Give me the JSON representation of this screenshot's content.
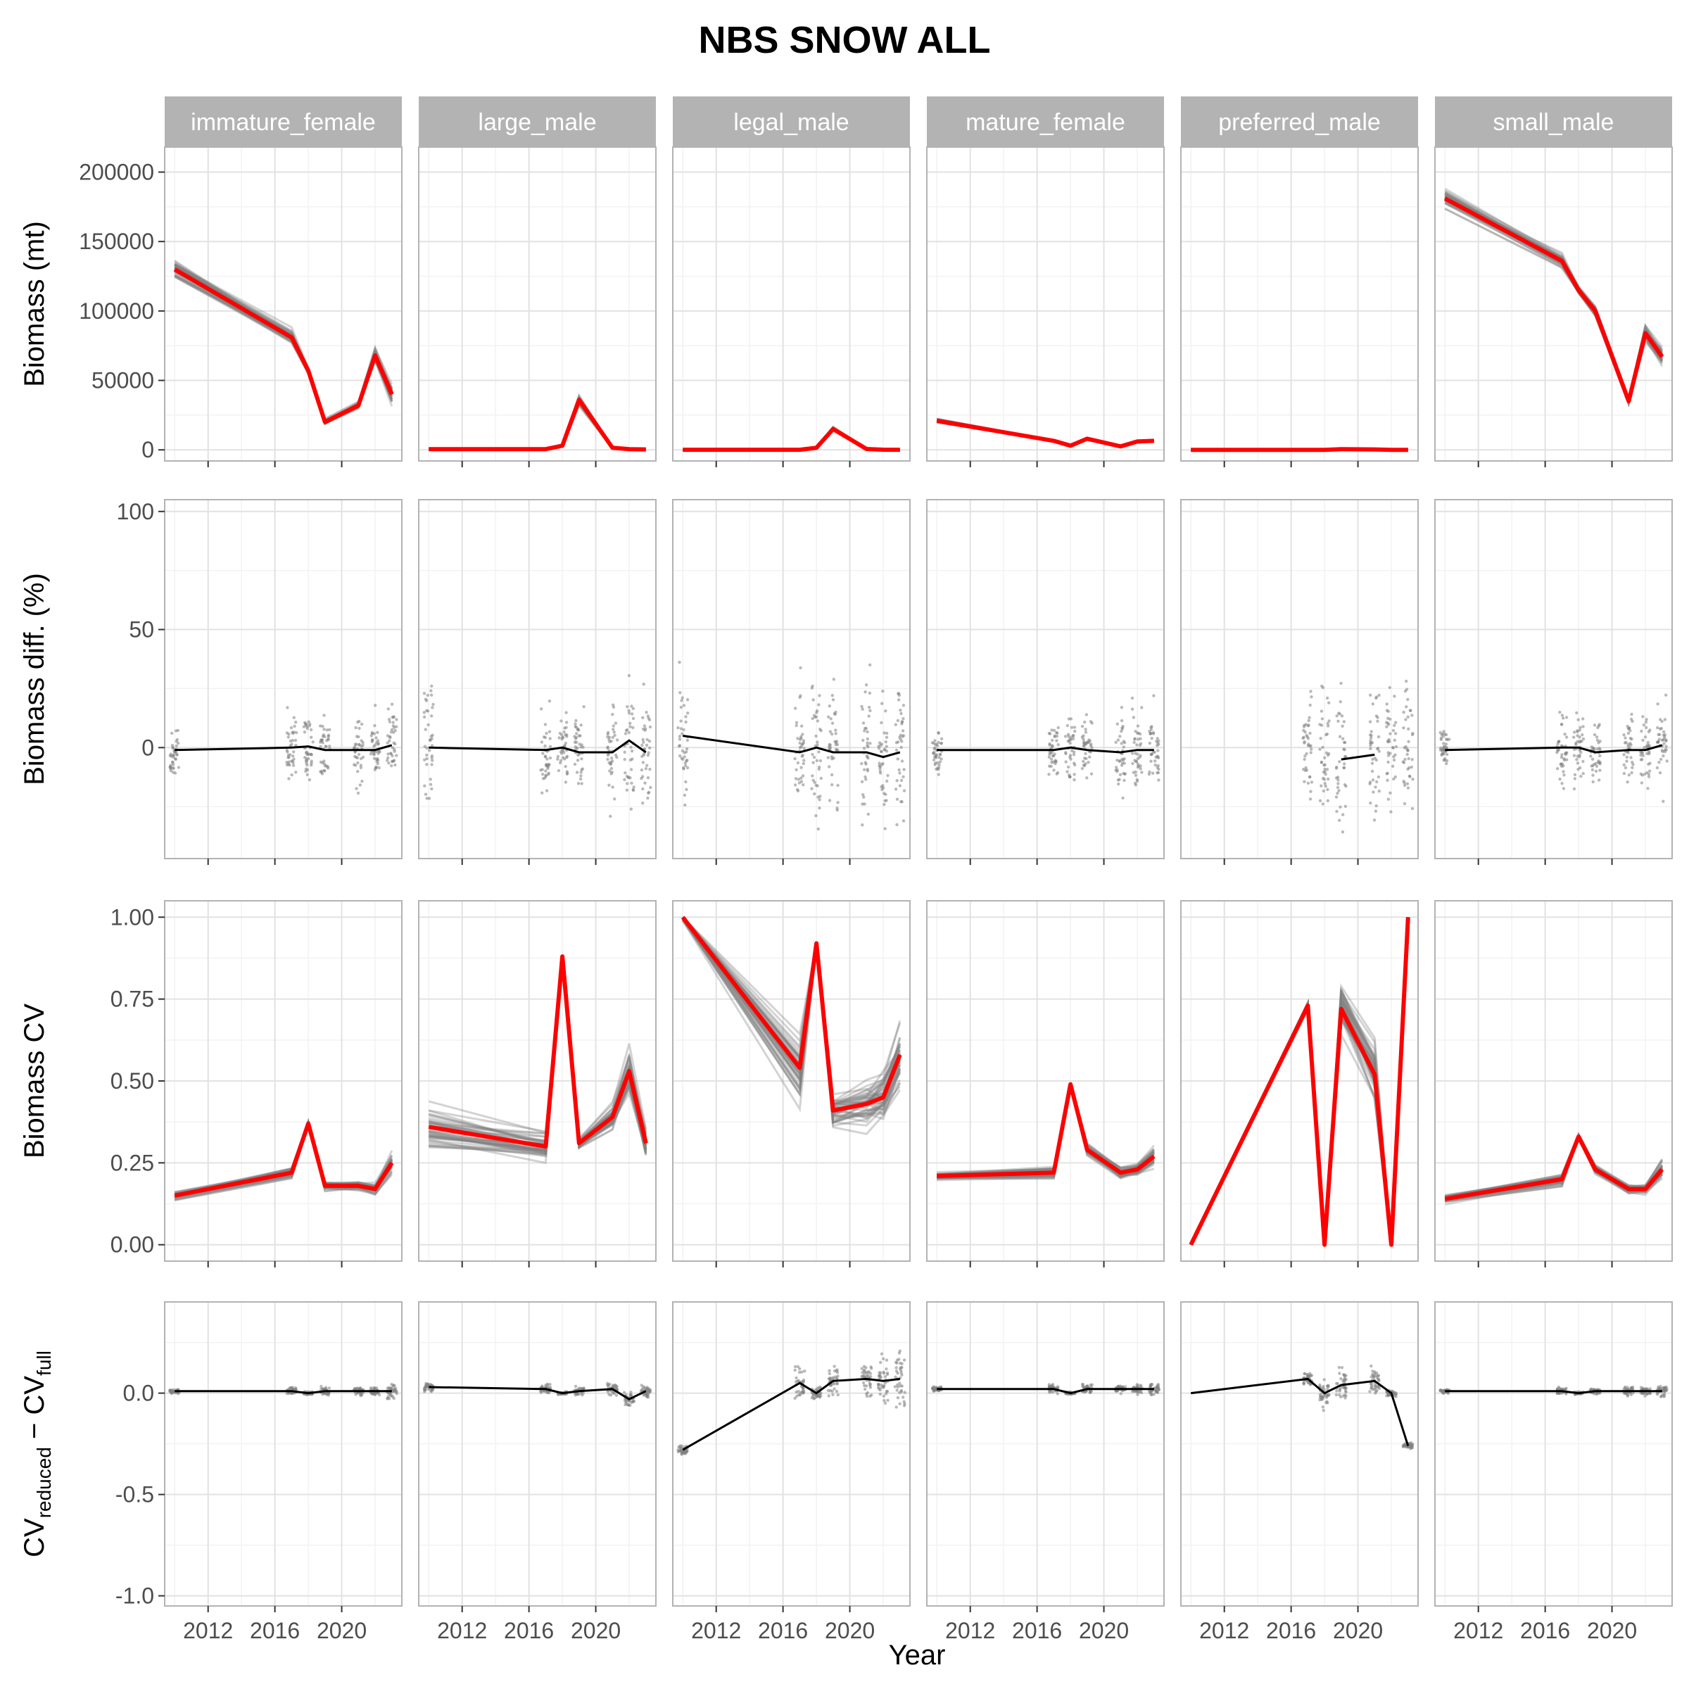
{
  "title": "NBS SNOW ALL",
  "xlabel": "Year",
  "panels": [
    "immature_female",
    "large_male",
    "legal_male",
    "mature_female",
    "preferred_male",
    "small_male"
  ],
  "colors": {
    "strip": "#b3b3b3",
    "grid_major": "#e2e2e2",
    "grid_minor": "#f2f2f2",
    "panel_border": "#b3b3b3",
    "replicate_line": "#808080",
    "full_line": "#ff0000",
    "summary_line": "#000000",
    "points": "#7f7f7f"
  },
  "x_axis": {
    "ticks": [
      2012,
      2016,
      2020
    ],
    "tick_labels": [
      "2012",
      "2016",
      "2020"
    ],
    "range": [
      2009.4,
      2023.6
    ]
  },
  "rows": [
    {
      "id": "biomass",
      "ylabel": "Biomass (mt)",
      "ylim": [
        -8000,
        218000
      ],
      "yticks": [
        0,
        50000,
        100000,
        150000,
        200000
      ],
      "ytick_labels": [
        "0",
        "50000",
        "100000",
        "150000",
        "200000"
      ]
    },
    {
      "id": "biomass_diff",
      "ylabel": "Biomass diff. (%)",
      "ylim": [
        -47,
        105
      ],
      "yticks": [
        0,
        50,
        100
      ],
      "ytick_labels": [
        "0",
        "50",
        "100"
      ]
    },
    {
      "id": "cv",
      "ylabel": "Biomass CV",
      "ylim": [
        -0.05,
        1.05
      ],
      "yticks": [
        0,
        0.25,
        0.5,
        0.75,
        1
      ],
      "ytick_labels": [
        "0.00",
        "0.25",
        "0.50",
        "0.75",
        "1.00"
      ]
    },
    {
      "id": "cv_diff",
      "ylabel_main": "CV",
      "ylabel_sub1": "reduced",
      "ylabel_mid": " − CV",
      "ylabel_sub2": "full",
      "ylim": [
        -1.05,
        0.45
      ],
      "yticks": [
        -1,
        -0.5,
        0
      ],
      "ytick_labels": [
        "-1.0",
        "-0.5",
        "0.0"
      ]
    }
  ],
  "chart_data": {
    "type": "line",
    "years": [
      2010,
      2017,
      2018,
      2019,
      2021,
      2022,
      2023
    ],
    "series": [
      {
        "panel": "immature_female",
        "biomass_full": [
          130000,
          81000,
          57000,
          20000,
          32000,
          68000,
          40000
        ],
        "biomass_rep_spread": [
          0.12,
          0.12,
          0.08,
          0.2,
          0.15,
          0.15,
          0.35
        ],
        "biomass_diff_mean": [
          -1,
          0,
          0.5,
          -1,
          -1,
          -1,
          1
        ],
        "biomass_diff_spread": [
          15,
          20,
          20,
          20,
          20,
          20,
          25
        ],
        "cv_full": [
          0.15,
          0.22,
          0.37,
          0.18,
          0.18,
          0.17,
          0.25
        ],
        "cv_rep_spread": [
          0.02,
          0.03,
          0.01,
          0.02,
          0.02,
          0.03,
          0.05
        ],
        "cv_diff_mean": [
          0.01,
          0.01,
          0,
          0.01,
          0.01,
          0.01,
          0.01
        ],
        "cv_diff_spread": [
          0.015,
          0.03,
          0.01,
          0.03,
          0.03,
          0.03,
          0.06
        ]
      },
      {
        "panel": "large_male",
        "biomass_full": [
          500,
          500,
          3000,
          36000,
          1500,
          500,
          300
        ],
        "biomass_rep_spread": [
          0.05,
          0.05,
          0.4,
          0.2,
          0.5,
          0.5,
          0.5
        ],
        "biomass_diff_mean": [
          0,
          -1,
          0,
          -2,
          -2,
          3,
          -2
        ],
        "biomass_diff_spread": [
          40,
          25,
          25,
          25,
          30,
          35,
          35
        ],
        "cv_full": [
          0.36,
          0.3,
          0.88,
          0.31,
          0.39,
          0.53,
          0.31
        ],
        "cv_rep_spread": [
          0.12,
          0.08,
          0.01,
          0.03,
          0.06,
          0.12,
          0.08
        ],
        "cv_diff_mean": [
          0.03,
          0.02,
          0,
          0.01,
          0.02,
          -0.03,
          0.01
        ],
        "cv_diff_spread": [
          0.03,
          0.03,
          0.01,
          0.03,
          0.05,
          0.05,
          0.04
        ]
      },
      {
        "panel": "legal_male",
        "biomass_full": [
          50,
          50,
          1500,
          15000,
          600,
          100,
          80
        ],
        "biomass_rep_spread": [
          0.1,
          0.1,
          0.5,
          0.2,
          0.6,
          0.6,
          0.6
        ],
        "biomass_diff_mean": [
          5,
          -2,
          0,
          -2,
          -2,
          -4,
          -2
        ],
        "biomass_diff_spread": [
          40,
          45,
          40,
          45,
          45,
          45,
          50
        ],
        "cv_full": [
          1.0,
          0.54,
          0.92,
          0.41,
          0.43,
          0.45,
          0.58
        ],
        "cv_rep_spread": [
          0.02,
          0.15,
          0.01,
          0.08,
          0.1,
          0.12,
          0.15
        ],
        "cv_diff_mean": [
          -0.28,
          0.05,
          0,
          0.06,
          0.07,
          0.06,
          0.07
        ],
        "cv_diff_spread": [
          0.04,
          0.12,
          0.05,
          0.12,
          0.15,
          0.15,
          0.18
        ]
      },
      {
        "panel": "mature_female",
        "biomass_full": [
          21000,
          6500,
          3000,
          8000,
          2500,
          6000,
          6500
        ],
        "biomass_rep_spread": [
          0.12,
          0.1,
          0.2,
          0.15,
          0.2,
          0.2,
          0.2
        ],
        "biomass_diff_mean": [
          -1,
          -1,
          0,
          -1,
          -2,
          -1,
          -1
        ],
        "biomass_diff_spread": [
          14,
          20,
          20,
          22,
          25,
          25,
          25
        ],
        "cv_full": [
          0.21,
          0.22,
          0.49,
          0.29,
          0.22,
          0.23,
          0.27
        ],
        "cv_rep_spread": [
          0.02,
          0.03,
          0.01,
          0.03,
          0.03,
          0.03,
          0.05
        ],
        "cv_diff_mean": [
          0.02,
          0.02,
          0,
          0.02,
          0.02,
          0.02,
          0.02
        ],
        "cv_diff_spread": [
          0.015,
          0.03,
          0.01,
          0.03,
          0.03,
          0.03,
          0.04
        ]
      },
      {
        "panel": "preferred_male",
        "biomass_full": [
          0,
          0,
          0,
          500,
          300,
          0,
          0
        ],
        "biomass_rep_spread": [
          0,
          0,
          0,
          0.2,
          0.3,
          0,
          0
        ],
        "biomass_diff_mean": [
          null,
          null,
          null,
          -5,
          -3,
          null,
          null
        ],
        "biomass_diff_spread": [
          0,
          40,
          40,
          45,
          45,
          40,
          40
        ],
        "cv_full": [
          0.0,
          0.73,
          0.0,
          0.72,
          0.52,
          0.0,
          1.0
        ],
        "cv_rep_spread": [
          0,
          0.02,
          0,
          0.12,
          0.15,
          0,
          0
        ],
        "cv_diff_mean": [
          0,
          0.07,
          0,
          0.04,
          0.06,
          0,
          -0.26
        ],
        "cv_diff_spread": [
          0,
          0.05,
          0.1,
          0.1,
          0.1,
          0.02,
          0.02
        ]
      },
      {
        "panel": "small_male",
        "biomass_full": [
          181000,
          136000,
          115000,
          100000,
          35000,
          84000,
          67000
        ],
        "biomass_rep_spread": [
          0.08,
          0.08,
          0.05,
          0.1,
          0.15,
          0.15,
          0.2
        ],
        "biomass_diff_mean": [
          -1,
          0,
          0,
          -2,
          -1,
          -1,
          1
        ],
        "biomass_diff_spread": [
          14,
          20,
          20,
          20,
          20,
          22,
          25
        ],
        "cv_full": [
          0.14,
          0.2,
          0.33,
          0.23,
          0.17,
          0.17,
          0.23
        ],
        "cv_rep_spread": [
          0.02,
          0.03,
          0.01,
          0.02,
          0.02,
          0.02,
          0.04
        ],
        "cv_diff_mean": [
          0.01,
          0.01,
          0,
          0.01,
          0.01,
          0.01,
          0.01
        ],
        "cv_diff_spread": [
          0.015,
          0.03,
          0.01,
          0.02,
          0.03,
          0.03,
          0.04
        ]
      }
    ]
  }
}
